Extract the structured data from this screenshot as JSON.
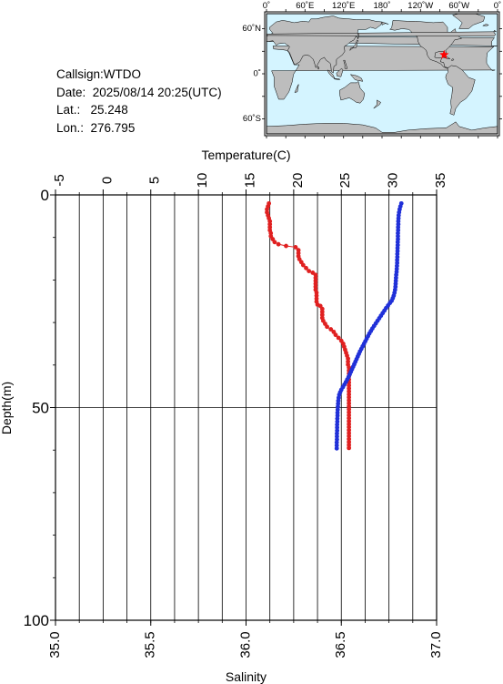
{
  "info": {
    "callsign": "Callsign:WTDO",
    "date": "Date:  2025/08/14 20:25(UTC)",
    "lat": "Lat.:   25.248",
    "lon": "Lon.:  276.795"
  },
  "map": {
    "top_tick_labels": [
      "0˚",
      "60˚E",
      "120˚E",
      "180˚",
      "120˚W",
      "60˚W",
      "0˚"
    ],
    "left_tick_labels": [
      "60˚N",
      "0˚",
      "60˚S"
    ],
    "ocean_color": "#d4f4ff",
    "land_color": "#bdbdbd",
    "marker_color": "#ff0000",
    "marker_symbol": "star",
    "station_lon": 276.795,
    "station_lat": 25.248
  },
  "colors": {
    "temperature": "#e02020",
    "salinity": "#2030d8"
  },
  "chart_data": {
    "type": "line",
    "title": "",
    "ylabel": "Depth(m)",
    "ylim": [
      0,
      100
    ],
    "y_inverted": true,
    "y_tick_labels": [
      "0",
      "50",
      "100"
    ],
    "grid": true,
    "top_axis": {
      "label": "Temperature(C)",
      "range": [
        -5,
        35
      ],
      "tick_labels": [
        "-5",
        "0",
        "5",
        "10",
        "15",
        "20",
        "25",
        "30",
        "35"
      ]
    },
    "bottom_axis": {
      "label": "Salinity",
      "range": [
        35.0,
        37.0
      ],
      "tick_labels": [
        "35.0",
        "35.5",
        "36.0",
        "36.5",
        "37.0"
      ]
    },
    "series": [
      {
        "axis": "top",
        "color_key": "temperature",
        "points": [
          {
            "x": 17.4,
            "y": 2.0
          },
          {
            "x": 17.3,
            "y": 2.7
          },
          {
            "x": 17.2,
            "y": 3.4
          },
          {
            "x": 17.2,
            "y": 4.1
          },
          {
            "x": 17.3,
            "y": 4.8
          },
          {
            "x": 17.4,
            "y": 5.5
          },
          {
            "x": 17.5,
            "y": 6.2
          },
          {
            "x": 17.5,
            "y": 6.9
          },
          {
            "x": 17.5,
            "y": 7.6
          },
          {
            "x": 17.5,
            "y": 8.3
          },
          {
            "x": 17.6,
            "y": 9.0
          },
          {
            "x": 17.6,
            "y": 9.7
          },
          {
            "x": 17.8,
            "y": 10.4
          },
          {
            "x": 18.0,
            "y": 11.1
          },
          {
            "x": 18.4,
            "y": 11.6
          },
          {
            "x": 19.2,
            "y": 12.0
          },
          {
            "x": 20.2,
            "y": 12.3
          },
          {
            "x": 20.5,
            "y": 13.0
          },
          {
            "x": 20.5,
            "y": 13.7
          },
          {
            "x": 20.5,
            "y": 14.4
          },
          {
            "x": 20.6,
            "y": 15.1
          },
          {
            "x": 20.8,
            "y": 15.8
          },
          {
            "x": 21.0,
            "y": 16.5
          },
          {
            "x": 21.3,
            "y": 17.2
          },
          {
            "x": 21.6,
            "y": 17.9
          },
          {
            "x": 22.0,
            "y": 18.3
          },
          {
            "x": 22.3,
            "y": 18.8
          },
          {
            "x": 22.3,
            "y": 19.5
          },
          {
            "x": 22.3,
            "y": 20.2
          },
          {
            "x": 22.3,
            "y": 20.9
          },
          {
            "x": 22.3,
            "y": 21.6
          },
          {
            "x": 22.3,
            "y": 22.3
          },
          {
            "x": 22.4,
            "y": 23.0
          },
          {
            "x": 22.4,
            "y": 23.7
          },
          {
            "x": 22.4,
            "y": 24.4
          },
          {
            "x": 22.4,
            "y": 25.1
          },
          {
            "x": 22.5,
            "y": 25.8
          },
          {
            "x": 22.8,
            "y": 26.1
          },
          {
            "x": 23.0,
            "y": 26.8
          },
          {
            "x": 23.0,
            "y": 27.5
          },
          {
            "x": 23.0,
            "y": 28.2
          },
          {
            "x": 23.0,
            "y": 28.9
          },
          {
            "x": 23.1,
            "y": 29.6
          },
          {
            "x": 23.3,
            "y": 30.3
          },
          {
            "x": 23.5,
            "y": 31.0
          },
          {
            "x": 23.9,
            "y": 31.6
          },
          {
            "x": 24.2,
            "y": 32.2
          },
          {
            "x": 24.4,
            "y": 32.9
          },
          {
            "x": 24.7,
            "y": 33.6
          },
          {
            "x": 25.0,
            "y": 34.3
          },
          {
            "x": 25.2,
            "y": 35.0
          },
          {
            "x": 25.3,
            "y": 35.7
          },
          {
            "x": 25.4,
            "y": 36.4
          },
          {
            "x": 25.5,
            "y": 37.1
          },
          {
            "x": 25.6,
            "y": 37.8
          },
          {
            "x": 25.7,
            "y": 38.5
          },
          {
            "x": 25.7,
            "y": 39.2
          },
          {
            "x": 25.7,
            "y": 39.9
          },
          {
            "x": 25.8,
            "y": 40.6
          },
          {
            "x": 25.8,
            "y": 41.3
          },
          {
            "x": 25.8,
            "y": 42.0
          },
          {
            "x": 25.8,
            "y": 42.7
          },
          {
            "x": 25.8,
            "y": 43.4
          },
          {
            "x": 25.8,
            "y": 44.1
          },
          {
            "x": 25.8,
            "y": 44.8
          },
          {
            "x": 25.8,
            "y": 45.5
          },
          {
            "x": 25.8,
            "y": 46.2
          },
          {
            "x": 25.8,
            "y": 46.9
          },
          {
            "x": 25.8,
            "y": 47.6
          },
          {
            "x": 25.8,
            "y": 48.3
          },
          {
            "x": 25.8,
            "y": 49.0
          },
          {
            "x": 25.8,
            "y": 49.7
          },
          {
            "x": 25.8,
            "y": 50.4
          },
          {
            "x": 25.8,
            "y": 51.1
          },
          {
            "x": 25.8,
            "y": 51.8
          },
          {
            "x": 25.8,
            "y": 52.5
          },
          {
            "x": 25.8,
            "y": 53.2
          },
          {
            "x": 25.8,
            "y": 53.9
          },
          {
            "x": 25.8,
            "y": 54.6
          },
          {
            "x": 25.8,
            "y": 55.3
          },
          {
            "x": 25.8,
            "y": 56.0
          },
          {
            "x": 25.8,
            "y": 56.7
          },
          {
            "x": 25.8,
            "y": 57.4
          },
          {
            "x": 25.8,
            "y": 58.1
          },
          {
            "x": 25.8,
            "y": 58.8
          },
          {
            "x": 25.8,
            "y": 59.5
          }
        ]
      },
      {
        "axis": "bottom",
        "color_key": "salinity",
        "points": [
          {
            "x": 36.815,
            "y": 2.0
          },
          {
            "x": 36.81,
            "y": 2.7
          },
          {
            "x": 36.806,
            "y": 3.4
          },
          {
            "x": 36.803,
            "y": 4.1
          },
          {
            "x": 36.801,
            "y": 4.8
          },
          {
            "x": 36.8,
            "y": 5.5
          },
          {
            "x": 36.799,
            "y": 6.2
          },
          {
            "x": 36.799,
            "y": 6.9
          },
          {
            "x": 36.798,
            "y": 7.6
          },
          {
            "x": 36.798,
            "y": 8.3
          },
          {
            "x": 36.797,
            "y": 9.0
          },
          {
            "x": 36.797,
            "y": 9.7
          },
          {
            "x": 36.797,
            "y": 10.4
          },
          {
            "x": 36.796,
            "y": 11.1
          },
          {
            "x": 36.796,
            "y": 11.8
          },
          {
            "x": 36.795,
            "y": 12.5
          },
          {
            "x": 36.795,
            "y": 13.2
          },
          {
            "x": 36.794,
            "y": 13.9
          },
          {
            "x": 36.794,
            "y": 14.6
          },
          {
            "x": 36.793,
            "y": 15.3
          },
          {
            "x": 36.793,
            "y": 16.0
          },
          {
            "x": 36.792,
            "y": 16.7
          },
          {
            "x": 36.791,
            "y": 17.4
          },
          {
            "x": 36.79,
            "y": 18.1
          },
          {
            "x": 36.788,
            "y": 18.8
          },
          {
            "x": 36.787,
            "y": 19.5
          },
          {
            "x": 36.786,
            "y": 20.2
          },
          {
            "x": 36.785,
            "y": 20.9
          },
          {
            "x": 36.784,
            "y": 21.6
          },
          {
            "x": 36.782,
            "y": 22.3
          },
          {
            "x": 36.779,
            "y": 23.0
          },
          {
            "x": 36.775,
            "y": 23.7
          },
          {
            "x": 36.77,
            "y": 24.3
          },
          {
            "x": 36.764,
            "y": 24.9
          },
          {
            "x": 36.755,
            "y": 25.4
          },
          {
            "x": 36.745,
            "y": 26.0
          },
          {
            "x": 36.735,
            "y": 26.6
          },
          {
            "x": 36.726,
            "y": 27.2
          },
          {
            "x": 36.717,
            "y": 27.8
          },
          {
            "x": 36.708,
            "y": 28.4
          },
          {
            "x": 36.699,
            "y": 29.0
          },
          {
            "x": 36.69,
            "y": 29.6
          },
          {
            "x": 36.681,
            "y": 30.2
          },
          {
            "x": 36.672,
            "y": 30.8
          },
          {
            "x": 36.663,
            "y": 31.4
          },
          {
            "x": 36.655,
            "y": 32.0
          },
          {
            "x": 36.647,
            "y": 32.6
          },
          {
            "x": 36.64,
            "y": 33.2
          },
          {
            "x": 36.633,
            "y": 33.8
          },
          {
            "x": 36.626,
            "y": 34.4
          },
          {
            "x": 36.619,
            "y": 35.0
          },
          {
            "x": 36.612,
            "y": 35.6
          },
          {
            "x": 36.605,
            "y": 36.2
          },
          {
            "x": 36.598,
            "y": 36.8
          },
          {
            "x": 36.592,
            "y": 37.4
          },
          {
            "x": 36.586,
            "y": 38.0
          },
          {
            "x": 36.58,
            "y": 38.6
          },
          {
            "x": 36.574,
            "y": 39.2
          },
          {
            "x": 36.568,
            "y": 39.8
          },
          {
            "x": 36.562,
            "y": 40.4
          },
          {
            "x": 36.556,
            "y": 41.0
          },
          {
            "x": 36.55,
            "y": 41.6
          },
          {
            "x": 36.544,
            "y": 42.2
          },
          {
            "x": 36.538,
            "y": 42.8
          },
          {
            "x": 36.531,
            "y": 43.4
          },
          {
            "x": 36.524,
            "y": 44.0
          },
          {
            "x": 36.516,
            "y": 44.6
          },
          {
            "x": 36.508,
            "y": 45.2
          },
          {
            "x": 36.5,
            "y": 45.8
          },
          {
            "x": 36.494,
            "y": 46.4
          },
          {
            "x": 36.489,
            "y": 47.0
          },
          {
            "x": 36.486,
            "y": 47.7
          },
          {
            "x": 36.484,
            "y": 48.4
          },
          {
            "x": 36.483,
            "y": 49.1
          },
          {
            "x": 36.482,
            "y": 49.8
          },
          {
            "x": 36.481,
            "y": 50.5
          },
          {
            "x": 36.48,
            "y": 51.2
          },
          {
            "x": 36.48,
            "y": 51.9
          },
          {
            "x": 36.479,
            "y": 52.6
          },
          {
            "x": 36.479,
            "y": 53.3
          },
          {
            "x": 36.478,
            "y": 54.0
          },
          {
            "x": 36.478,
            "y": 54.7
          },
          {
            "x": 36.478,
            "y": 55.4
          },
          {
            "x": 36.477,
            "y": 56.1
          },
          {
            "x": 36.477,
            "y": 56.8
          },
          {
            "x": 36.477,
            "y": 57.5
          },
          {
            "x": 36.476,
            "y": 58.2
          },
          {
            "x": 36.476,
            "y": 58.9
          },
          {
            "x": 36.476,
            "y": 59.6
          }
        ]
      }
    ]
  }
}
